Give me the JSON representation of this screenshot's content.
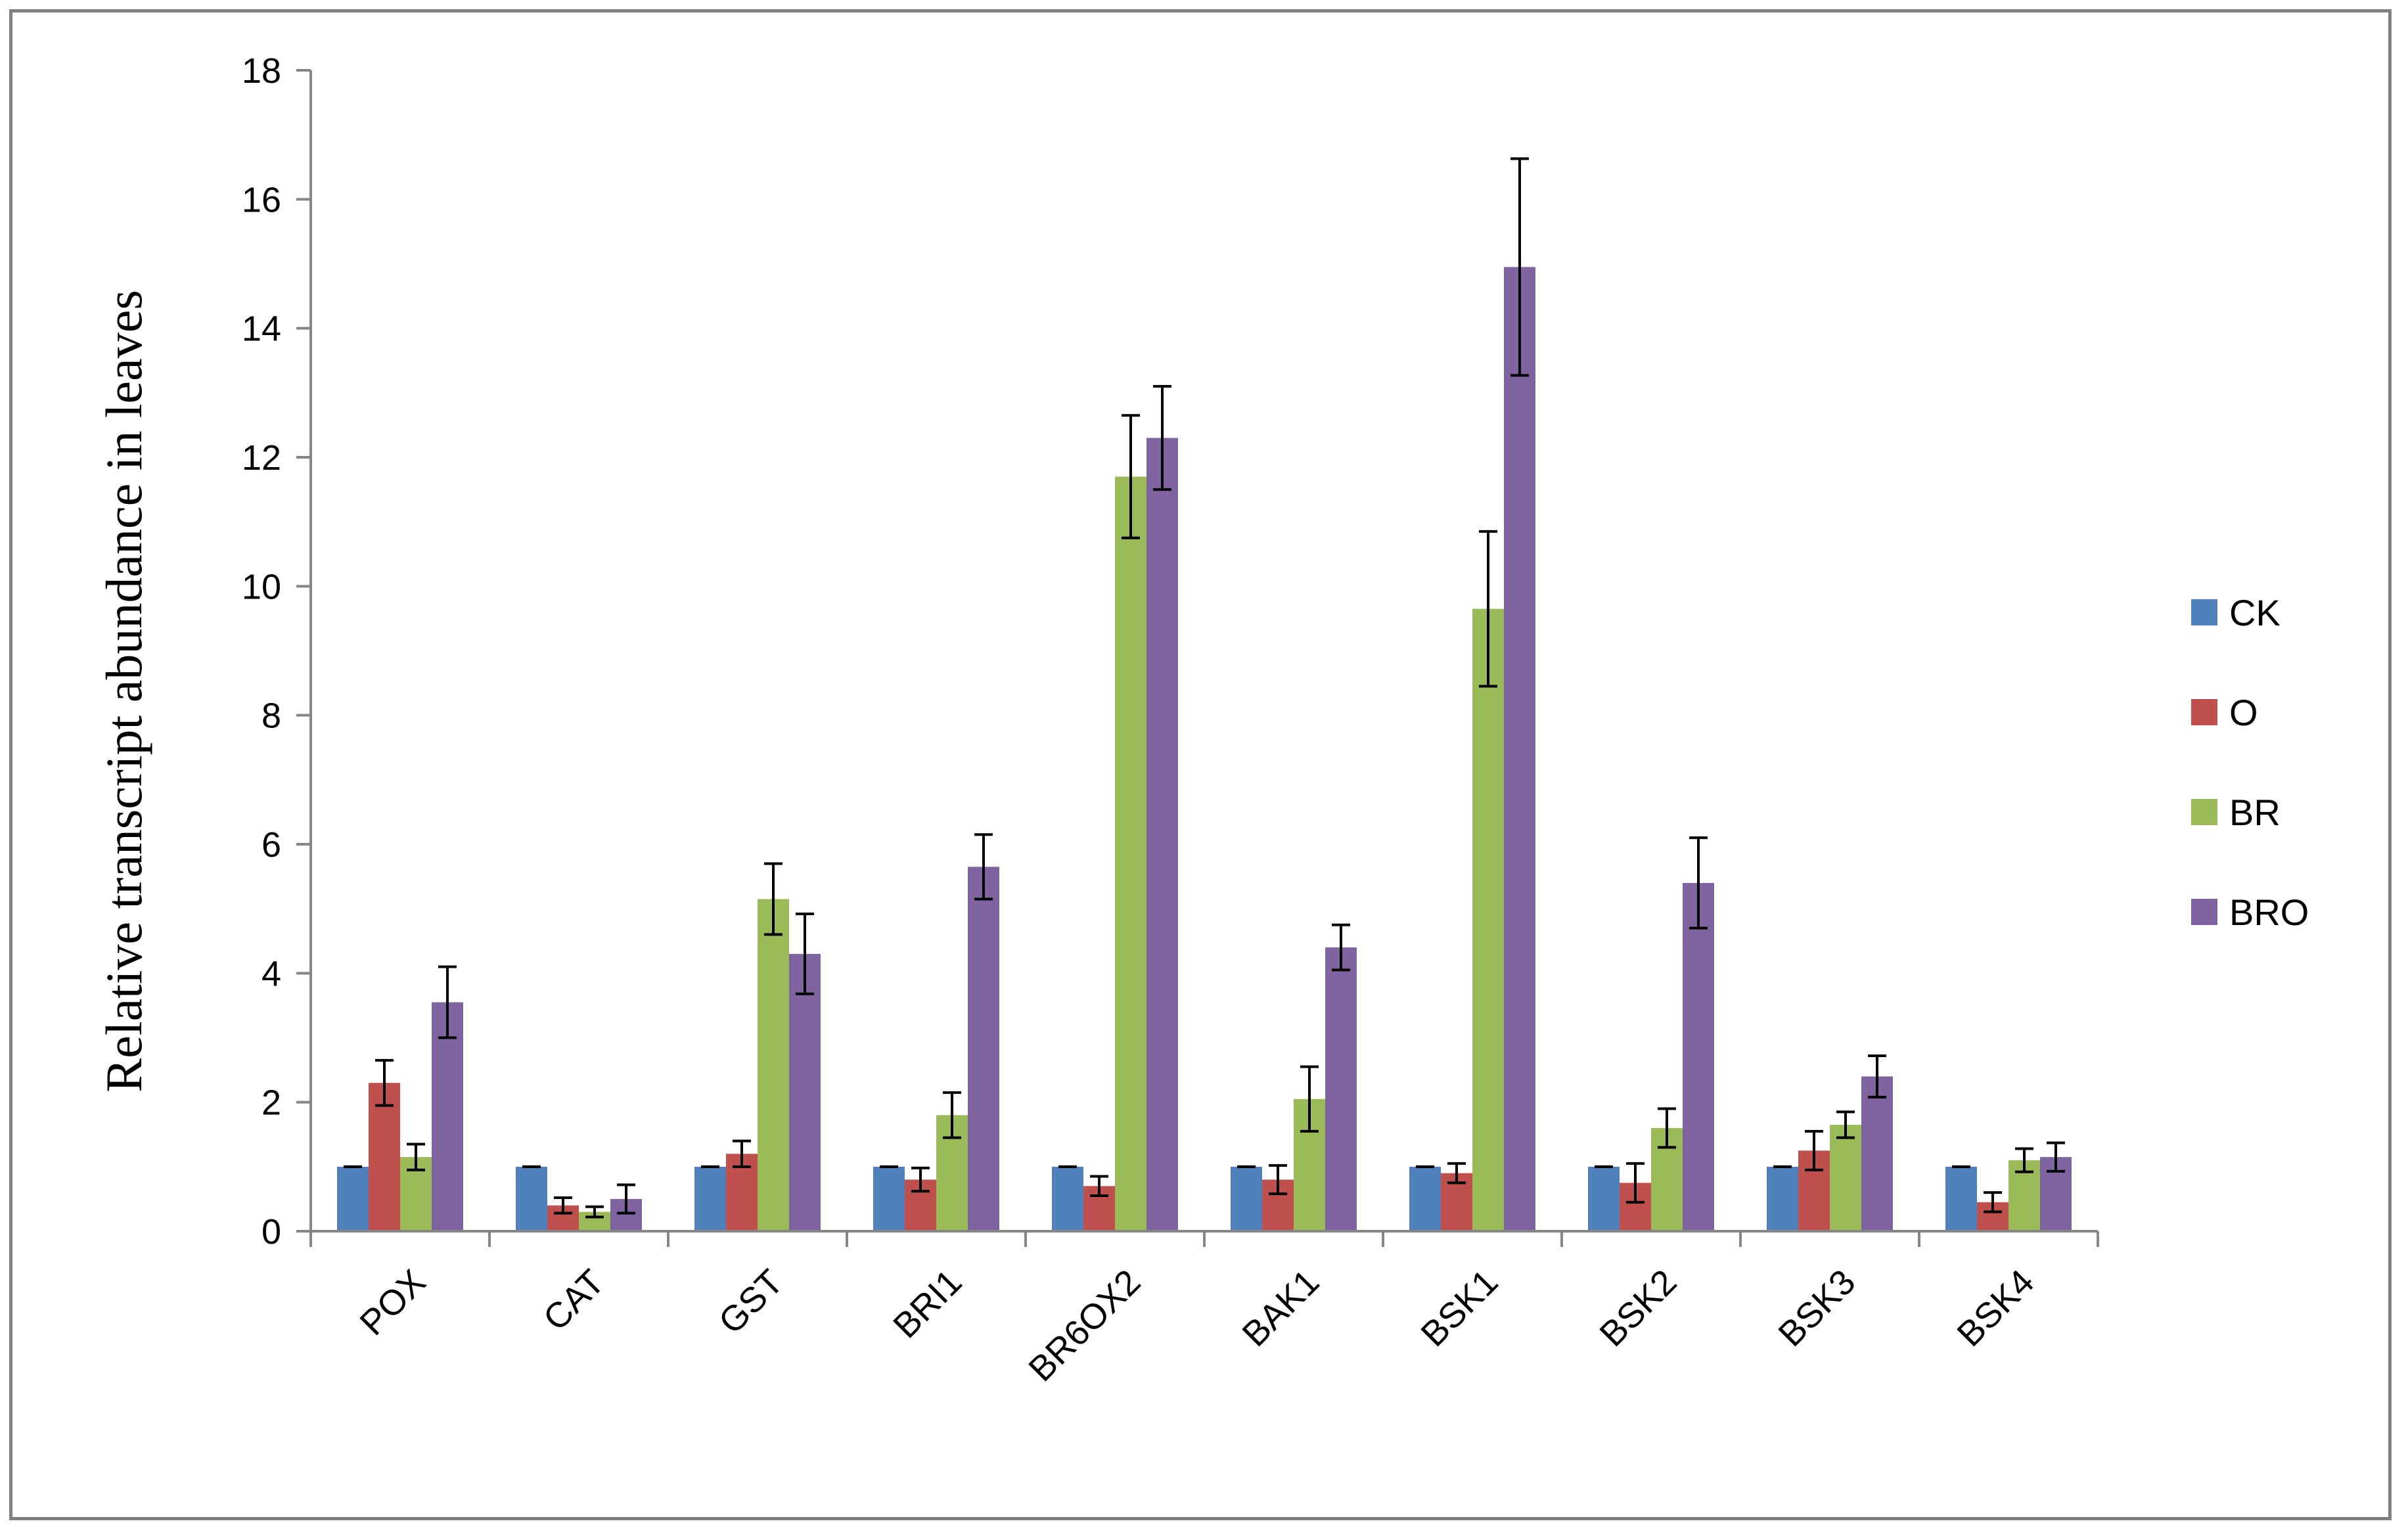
{
  "chart_data": {
    "type": "bar",
    "title": "",
    "xlabel": "",
    "ylabel": "Relative transcript abundance in leaves",
    "ylim": [
      0,
      18
    ],
    "yticks": [
      0,
      2,
      4,
      6,
      8,
      10,
      12,
      14,
      16,
      18
    ],
    "grid": false,
    "legend_position": "right",
    "categories": [
      "POX",
      "CAT",
      "GST",
      "BRI1",
      "BR6OX2",
      "BAK1",
      "BSK1",
      "BSK2",
      "BSK3",
      "BSK4"
    ],
    "series": [
      {
        "name": "CK",
        "color": "#4F81BD",
        "values": [
          1,
          1,
          1,
          1,
          1,
          1,
          1,
          1,
          1,
          1
        ],
        "errors": [
          0,
          0,
          0,
          0,
          0,
          0,
          0,
          0,
          0,
          0
        ]
      },
      {
        "name": "O",
        "color": "#C0504D",
        "values": [
          2.3,
          0.4,
          1.2,
          0.8,
          0.7,
          0.8,
          0.9,
          0.75,
          1.25,
          0.45
        ],
        "errors": [
          0.35,
          0.12,
          0.2,
          0.18,
          0.15,
          0.22,
          0.15,
          0.3,
          0.3,
          0.15
        ]
      },
      {
        "name": "BR",
        "color": "#9BBB59",
        "values": [
          1.15,
          0.3,
          5.15,
          1.8,
          11.7,
          2.05,
          9.65,
          1.6,
          1.65,
          1.1
        ],
        "errors": [
          0.2,
          0.08,
          0.55,
          0.35,
          0.95,
          0.5,
          1.2,
          0.3,
          0.2,
          0.18
        ]
      },
      {
        "name": "BRO",
        "color": "#8064A2",
        "values": [
          3.55,
          0.5,
          4.3,
          5.65,
          12.3,
          4.4,
          14.95,
          5.4,
          2.4,
          1.15
        ],
        "errors": [
          0.55,
          0.22,
          0.62,
          0.5,
          0.8,
          0.35,
          1.68,
          0.7,
          0.32,
          0.22
        ]
      }
    ]
  }
}
